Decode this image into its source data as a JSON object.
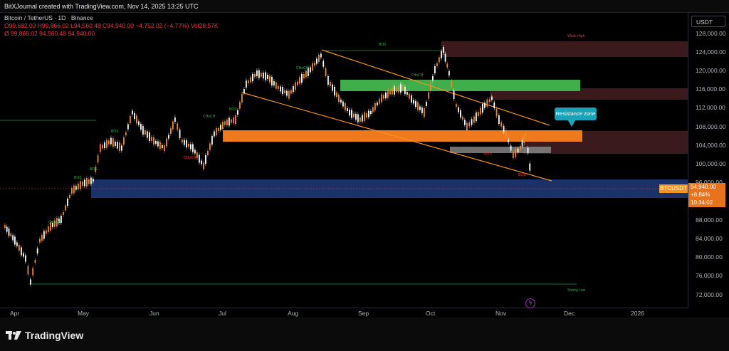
{
  "header": {
    "title": "BitXJournal created with TradingView.com, Nov 14, 2025 13:25 UTC"
  },
  "legend": {
    "symbol": "Bitcoin / TetherUS · 1D · Binance",
    "ohlc": "O99,692.03 H99,866.02 L94,560.48 C94,940.00 −4,752.02 (−4.77%) Vol28.57K",
    "indicator": "Ø  99,866.02  94,560.48  94,940.00"
  },
  "price_axis": {
    "currency": "USDT",
    "ticks": [
      "128,000.00",
      "124,000.00",
      "120,000.00",
      "116,000.00",
      "112,000.00",
      "108,000.00",
      "104,000.00",
      "100,000.00",
      "96,000.00",
      "88,000.00",
      "84,000.00",
      "80,000.00",
      "76,000.00",
      "72,000.00"
    ],
    "last_price": "94,940.00",
    "change": "+8.84%",
    "countdown": "10:34:02",
    "symbol_tag": "BTCUSDT"
  },
  "time_axis": {
    "labels": [
      "Apr",
      "May",
      "Jun",
      "Jul",
      "Aug",
      "Sep",
      "Oct",
      "Nov",
      "Dec",
      "2026"
    ]
  },
  "annotations": {
    "resistance": "Resistance zone",
    "bos": "BOS",
    "choch": "CHoCH",
    "weak_high": "Weak High",
    "strong_low": "Strong Low"
  },
  "colors": {
    "bull": "#ef8a2b",
    "bear": "#ffffff",
    "accent": "#f7931a",
    "demand": "#1f3b7a",
    "supply": "#ee7a1d",
    "green_zone": "#3fae4b"
  },
  "footer": {
    "brand": "TradingView"
  }
}
